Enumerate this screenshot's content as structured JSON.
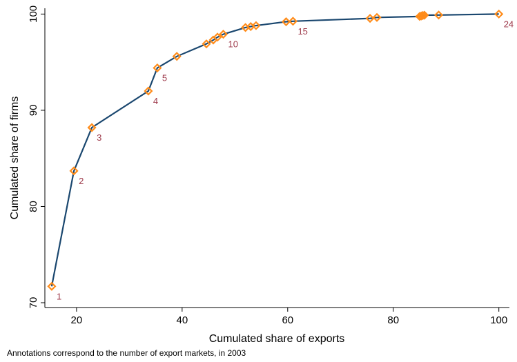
{
  "chart_data": {
    "type": "line",
    "xlabel": "Cumulated share of exports",
    "ylabel": "Cumulated share of firms",
    "note": "Annotations correspond to the number of export markets, in 2003",
    "xlim": [
      14,
      102
    ],
    "ylim": [
      69.5,
      100.6
    ],
    "xticks": [
      20,
      40,
      60,
      80,
      100
    ],
    "yticks": [
      70,
      80,
      90,
      100
    ],
    "grid": false,
    "line_color": "#1a476f",
    "marker_color": "#ff8c1a",
    "label_color": "#9e3a4b",
    "points": [
      {
        "x": 15.3,
        "y": 71.7,
        "label": "1"
      },
      {
        "x": 19.5,
        "y": 83.7,
        "label": "2"
      },
      {
        "x": 22.9,
        "y": 88.2,
        "label": "3"
      },
      {
        "x": 33.6,
        "y": 92.0,
        "label": "4"
      },
      {
        "x": 35.3,
        "y": 94.4,
        "label": "5"
      },
      {
        "x": 39.0,
        "y": 95.6,
        "label": ""
      },
      {
        "x": 44.6,
        "y": 96.9,
        "label": ""
      },
      {
        "x": 45.9,
        "y": 97.3,
        "label": ""
      },
      {
        "x": 46.7,
        "y": 97.6,
        "label": ""
      },
      {
        "x": 47.8,
        "y": 97.9,
        "label": "10"
      },
      {
        "x": 52.0,
        "y": 98.6,
        "label": ""
      },
      {
        "x": 53.0,
        "y": 98.7,
        "label": ""
      },
      {
        "x": 54.0,
        "y": 98.8,
        "label": ""
      },
      {
        "x": 59.7,
        "y": 99.2,
        "label": ""
      },
      {
        "x": 61.0,
        "y": 99.25,
        "label": "15"
      },
      {
        "x": 75.6,
        "y": 99.55,
        "label": ""
      },
      {
        "x": 76.9,
        "y": 99.65,
        "label": ""
      },
      {
        "x": 85.0,
        "y": 99.75,
        "label": ""
      },
      {
        "x": 85.3,
        "y": 99.8,
        "label": ""
      },
      {
        "x": 85.6,
        "y": 99.85,
        "label": ""
      },
      {
        "x": 85.9,
        "y": 99.88,
        "label": ""
      },
      {
        "x": 88.6,
        "y": 99.9,
        "label": ""
      },
      {
        "x": 100.0,
        "y": 100.0,
        "label": "24"
      }
    ]
  }
}
